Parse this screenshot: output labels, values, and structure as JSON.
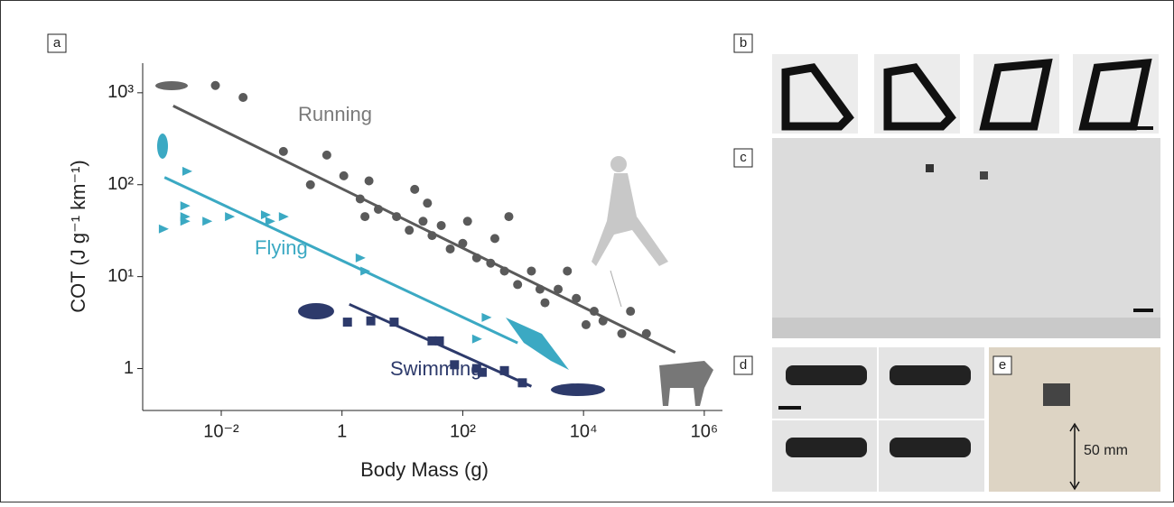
{
  "chart_data": {
    "type": "scatter",
    "x_label": "Body Mass (g)",
    "y_label": "COT (J g⁻¹ km⁻¹)",
    "x_log": true,
    "y_log": true,
    "xlim": [
      0.0005,
      2000000
    ],
    "ylim": [
      0.35,
      2100
    ],
    "xticks": [
      {
        "value": 0.01,
        "label": "10⁻²"
      },
      1,
      {
        "value": 100,
        "label": "10²"
      },
      {
        "value": 10000,
        "label": "10⁴"
      },
      {
        "value": 1000000,
        "label": "10⁶"
      }
    ],
    "yticks": [
      1,
      {
        "value": 10,
        "label": "10¹"
      },
      {
        "value": 100,
        "label": "10²"
      },
      {
        "value": 1000,
        "label": "10³"
      }
    ],
    "series": [
      {
        "name": "Running",
        "color": "#5a5a5a",
        "label_color": "#7a7a7a",
        "marker": "circle",
        "x": [
          0.008,
          0.023,
          0.107,
          0.3,
          0.56,
          1.07,
          2,
          2.4,
          2.8,
          4,
          8,
          13,
          22,
          31,
          44,
          62,
          100,
          170,
          290,
          490,
          810,
          1370,
          2300,
          3800,
          7600,
          15000,
          21000,
          43000,
          60000,
          16,
          26,
          120,
          340,
          580,
          1900,
          5400,
          11000,
          110000
        ],
        "values": [
          1200,
          890,
          230,
          100,
          210,
          125,
          70,
          45,
          110,
          54,
          45,
          32,
          40,
          28,
          36,
          20,
          23,
          16,
          14,
          11.5,
          8.2,
          11.5,
          5.2,
          7.3,
          5.8,
          4.2,
          3.3,
          2.4,
          4.2,
          89,
          63,
          40,
          26,
          45,
          7.3,
          11.5,
          3.0,
          2.4
        ],
        "fit": {
          "x": [
            0.0016,
            330000
          ],
          "y": [
            720,
            1.5
          ]
        }
      },
      {
        "name": "Flying",
        "color": "#3ba9c3",
        "label_color": "#3ba9c3",
        "marker": "triangle",
        "x": [
          0.0011,
          0.0027,
          0.0025,
          0.0025,
          0.0025,
          0.0058,
          0.0137,
          0.054,
          0.107,
          0.064,
          2,
          2.4,
          245,
          170
        ],
        "values": [
          33,
          140,
          59,
          45,
          40,
          40,
          45,
          47,
          45,
          40,
          16,
          11.5,
          3.6,
          2.1
        ],
        "fit": {
          "x": [
            0.00115,
            810
          ],
          "y": [
            120,
            1.9
          ]
        }
      },
      {
        "name": "Swimming",
        "color": "#2d3a6b",
        "label_color": "#2d3a6b",
        "marker": "square",
        "x": [
          1.23,
          3.0,
          7.3,
          31,
          41,
          73,
          170,
          210,
          490,
          970
        ],
        "values": [
          3.2,
          3.3,
          3.2,
          2.0,
          2.0,
          1.1,
          1.0,
          0.91,
          0.95,
          0.7
        ],
        "fit": {
          "x": [
            1.32,
            1370
          ],
          "y": [
            5.0,
            0.64
          ]
        }
      }
    ]
  },
  "panel_labels": [
    "a",
    "b",
    "c",
    "d",
    "e"
  ],
  "scale_annotation": "50 mm"
}
